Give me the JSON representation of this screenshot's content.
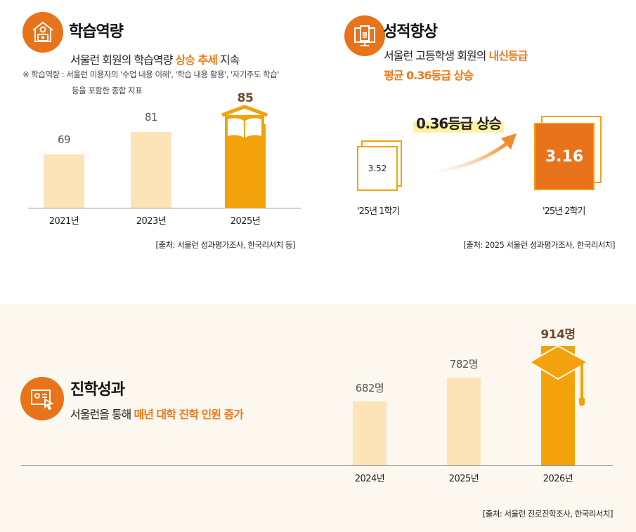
{
  "colors": {
    "accent": "#e8731a",
    "bar_light": "#fde3b8",
    "bar_highlight": "#f3a20c",
    "value_highlight": "#6b4a2b"
  },
  "section1": {
    "icon": "house-laptop-icon",
    "title": "학습역량",
    "subtitle_pre": "서울런 회원의 학습역량 ",
    "subtitle_hl": "상승 추세",
    "subtitle_post": " 지속",
    "note_line1": "※ 학습역량 : 서울런 이용자의 '수업 내용 이해', '학습 내용 활용', '자기주도 학습'",
    "note_line2": "등을 포함한 종합 지표",
    "source": "[출처: 서울런 성과평가조사, 한국리서치 등]"
  },
  "section2": {
    "icon": "monitor-document-icon",
    "title": "성적향상",
    "subtitle_pre": "서울런 고등학생 회원의 ",
    "subtitle_hl": "내신등급",
    "subtitle_line2": "평균 0.36등급 상승",
    "change_label": "0.36등급 상승",
    "before_value": "3.52",
    "before_label": "'25년 1학기",
    "after_value": "3.16",
    "after_label": "'25년 2학기",
    "source": "[출처: 2025 서울런 성과평가조사, 한국리서치]"
  },
  "section3": {
    "icon": "certificate-cursor-icon",
    "title": "진학성과",
    "subtitle_pre": "서울런을 통해 ",
    "subtitle_hl": "매년 대학 진학 인원 증가",
    "source": "[출처: 서울런 진로진학조사, 한국리서치]"
  },
  "chart_data": [
    {
      "type": "bar",
      "categories": [
        "2021년",
        "2023년",
        "2025년"
      ],
      "values": [
        69,
        81,
        85
      ],
      "value_labels": [
        "69",
        "81",
        "85"
      ],
      "highlight_index": 2,
      "ylabel": "",
      "xlabel": ""
    },
    {
      "type": "bar",
      "categories": [
        "2024년",
        "2025년",
        "2026년"
      ],
      "values": [
        682,
        782,
        914
      ],
      "value_labels": [
        "682명",
        "782명",
        "914명"
      ],
      "highlight_index": 2,
      "ylabel": "",
      "xlabel": ""
    }
  ]
}
